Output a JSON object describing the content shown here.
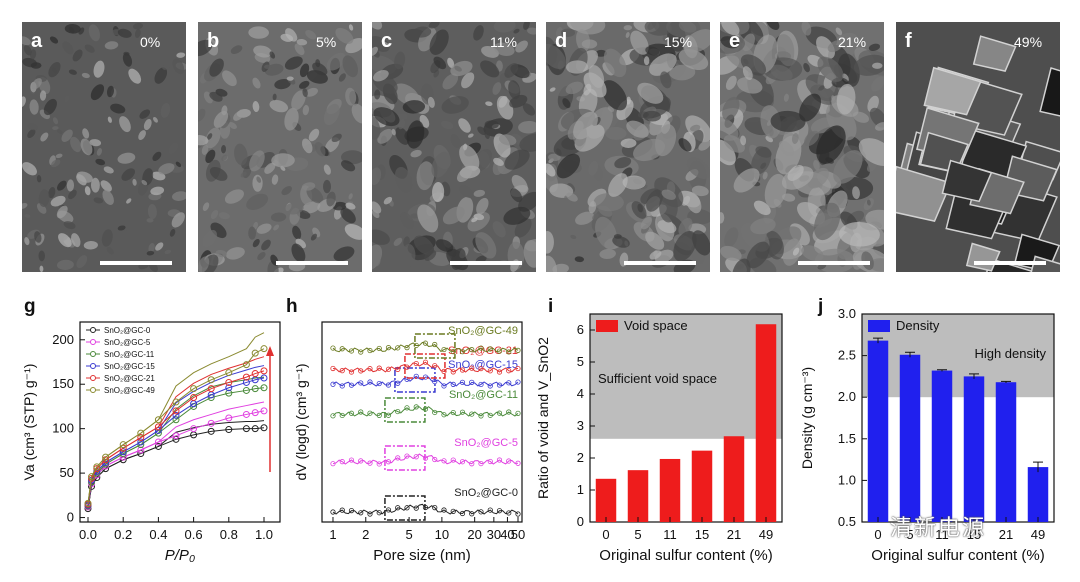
{
  "sem_panels": [
    {
      "label": "a",
      "pct": "0%",
      "tone": "#5a5a5a"
    },
    {
      "label": "b",
      "pct": "5%",
      "tone": "#6c6c6c"
    },
    {
      "label": "c",
      "pct": "11%",
      "tone": "#5e5e5e"
    },
    {
      "label": "d",
      "pct": "15%",
      "tone": "#6a6a6a"
    },
    {
      "label": "e",
      "pct": "21%",
      "tone": "#707070"
    },
    {
      "label": "f",
      "pct": "49%",
      "tone": "#4e4e4e"
    }
  ],
  "chart_data": [
    {
      "panel": "g",
      "type": "line",
      "ylabel": "Va (cm³ (STP) g⁻¹)",
      "xlabel": "P/P₀",
      "xlim": [
        0,
        1.0
      ],
      "ylim": [
        -5,
        220
      ],
      "xticks": [
        "0.0",
        "0.2",
        "0.4",
        "0.6",
        "0.8",
        "1.0"
      ],
      "yticks": [
        "0",
        "50",
        "100",
        "150",
        "200"
      ],
      "legend": [
        "SnO₂@GC-0",
        "SnO₂@GC-5",
        "SnO₂@GC-11",
        "SnO₂@GC-15",
        "SnO₂@GC-21",
        "SnO₂@GC-49"
      ],
      "series": [
        {
          "name": "SnO₂@GC-0",
          "color": "#222222",
          "x": [
            0,
            0.02,
            0.05,
            0.1,
            0.2,
            0.3,
            0.4,
            0.5,
            0.6,
            0.7,
            0.8,
            0.9,
            0.95,
            1.0
          ],
          "y": [
            10,
            35,
            45,
            55,
            65,
            72,
            80,
            88,
            93,
            97,
            99,
            100,
            100,
            101
          ]
        },
        {
          "name": "SnO₂@GC-5",
          "color": "#e040e0",
          "x": [
            0,
            0.02,
            0.05,
            0.1,
            0.2,
            0.3,
            0.4,
            0.5,
            0.6,
            0.7,
            0.8,
            0.9,
            0.95,
            1.0
          ],
          "y": [
            12,
            38,
            48,
            58,
            68,
            76,
            85,
            92,
            100,
            106,
            112,
            116,
            118,
            120
          ]
        },
        {
          "name": "SnO₂@GC-11",
          "color": "#4a8a3a",
          "x": [
            0,
            0.02,
            0.05,
            0.1,
            0.2,
            0.3,
            0.4,
            0.5,
            0.6,
            0.7,
            0.8,
            0.9,
            0.95,
            1.0
          ],
          "y": [
            13,
            40,
            50,
            60,
            72,
            82,
            95,
            110,
            125,
            135,
            140,
            143,
            145,
            146
          ]
        },
        {
          "name": "SnO₂@GC-15",
          "color": "#3a3ad0",
          "x": [
            0,
            0.02,
            0.05,
            0.1,
            0.2,
            0.3,
            0.4,
            0.5,
            0.6,
            0.7,
            0.8,
            0.9,
            0.95,
            1.0
          ],
          "y": [
            14,
            42,
            52,
            62,
            74,
            85,
            98,
            115,
            128,
            138,
            146,
            152,
            155,
            157
          ]
        },
        {
          "name": "SnO₂@GC-21",
          "color": "#e03030",
          "x": [
            0,
            0.02,
            0.05,
            0.1,
            0.2,
            0.3,
            0.4,
            0.5,
            0.6,
            0.7,
            0.8,
            0.9,
            0.95,
            1.0
          ],
          "y": [
            15,
            44,
            55,
            65,
            78,
            90,
            102,
            120,
            135,
            145,
            152,
            158,
            162,
            165
          ]
        },
        {
          "name": "SnO₂@GC-49",
          "color": "#8a8a30",
          "x": [
            0,
            0.02,
            0.05,
            0.1,
            0.2,
            0.3,
            0.4,
            0.5,
            0.6,
            0.7,
            0.8,
            0.9,
            0.95,
            1.0
          ],
          "y": [
            16,
            46,
            57,
            68,
            82,
            95,
            110,
            130,
            145,
            155,
            163,
            172,
            185,
            190
          ]
        }
      ]
    },
    {
      "panel": "h",
      "type": "line",
      "ylabel": "dV (logd) (cm³ g⁻¹)",
      "xlabel": "Pore size (nm)",
      "xticks": [
        "1",
        "2",
        "5",
        "10",
        "20",
        "30",
        "40",
        "50"
      ],
      "series": [
        {
          "name": "SnO₂@GC-0",
          "color": "#222222",
          "offset": 0
        },
        {
          "name": "SnO₂@GC-5",
          "color": "#e040e0",
          "offset": 1
        },
        {
          "name": "SnO₂@GC-11",
          "color": "#4a8a3a",
          "offset": 2
        },
        {
          "name": "SnO₂@GC-15",
          "color": "#3a3ad0",
          "offset": 3
        },
        {
          "name": "SnO₂@GC-21",
          "color": "#e03030",
          "offset": 4
        },
        {
          "name": "SnO₂@GC-49",
          "color": "#6a7a20",
          "offset": 5
        }
      ]
    },
    {
      "panel": "i",
      "type": "bar",
      "ylabel": "Ratio of void and V_SnO2",
      "xlabel": "Original sulfur content (%)",
      "categories": [
        "0",
        "5",
        "11",
        "15",
        "21",
        "49"
      ],
      "values": [
        1.35,
        1.62,
        1.97,
        2.23,
        2.68,
        6.18
      ],
      "ylim": [
        0,
        6.5
      ],
      "yticks": [
        "0",
        "1",
        "2",
        "3",
        "4",
        "5",
        "6"
      ],
      "legend": "Void space",
      "shade_from": 2.6,
      "annotation": "Sufficient void space",
      "bar_color": "#ee1c1c"
    },
    {
      "panel": "j",
      "type": "bar",
      "ylabel": "Density (g cm⁻³)",
      "xlabel": "Original sulfur content (%)",
      "categories": [
        "0",
        "5",
        "11",
        "15",
        "21",
        "49"
      ],
      "values": [
        2.68,
        2.51,
        2.32,
        2.25,
        2.18,
        1.16
      ],
      "errors": [
        0.03,
        0.03,
        0.01,
        0.03,
        0.01,
        0.06
      ],
      "ylim": [
        0.5,
        3.0
      ],
      "yticks": [
        "0.5",
        "1.0",
        "1.5",
        "2.0",
        "2.5",
        "3.0"
      ],
      "legend": "Density",
      "shade_from": 2.0,
      "annotation": "High density",
      "bar_color": "#2020ee"
    }
  ],
  "watermark": "清新电源"
}
